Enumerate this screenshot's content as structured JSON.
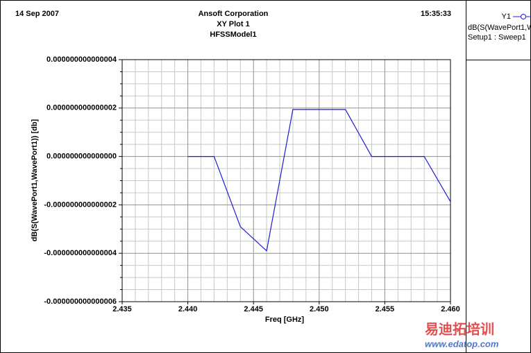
{
  "chart_data": {
    "type": "line",
    "date": "14 Sep 2007",
    "company": "Ansoft Corporation",
    "title": "XY Plot 1",
    "subtitle": "HFSSModel1",
    "time": "15:35:33",
    "x_label": "Freq [GHz]",
    "y_label": "dB(S(WavePort1,WavePort1)) [db]",
    "legend": {
      "trace": "Y1",
      "expression": "dB(S(WavePort1,W",
      "setup": "Setup1 : Sweep1"
    },
    "watermark": {
      "brand": "易迪拓培训",
      "url": "www.edatop.com"
    },
    "x": [
      2.44,
      2.442,
      2.444,
      2.446,
      2.448,
      2.45,
      2.452,
      2.454,
      2.456,
      2.458,
      2.46
    ],
    "series": [
      {
        "name": "Y1",
        "color": "#1c1cd6",
        "values": [
          0,
          0,
          -2.9e-15,
          -3.9e-15,
          1.94e-15,
          1.94e-15,
          1.94e-15,
          0,
          0,
          0,
          -1.87e-15
        ]
      }
    ],
    "xlim": [
      2.435,
      2.46
    ],
    "xticks": [
      2.435,
      {
        "value": 2.44,
        "label": "2.440"
      },
      2.445,
      {
        "value": 2.45,
        "label": "2.450"
      },
      2.455,
      {
        "value": 2.46,
        "label": "2.460"
      }
    ],
    "ylim": [
      -6e-15,
      4e-15
    ],
    "yticks": [
      {
        "value": 4e-15,
        "label": "0.000000000000004"
      },
      {
        "value": 2e-15,
        "label": "0.000000000000002"
      },
      {
        "value": 0,
        "label": "0.000000000000000"
      },
      {
        "value": -2e-15,
        "label": "-0.000000000000002"
      },
      {
        "value": -4e-15,
        "label": "-0.000000000000004"
      },
      {
        "value": -6e-15,
        "label": "-0.000000000000006"
      }
    ],
    "grid": true,
    "x_minor_divisions": 5,
    "y_minor_divisions": 4
  }
}
